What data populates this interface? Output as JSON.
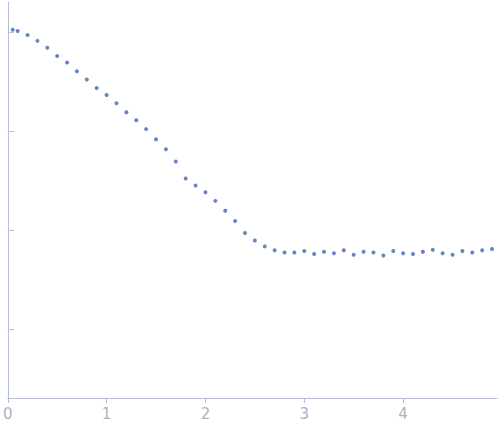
{
  "chart_data": {
    "type": "scatter",
    "x": [
      0.05,
      0.1,
      0.2,
      0.3,
      0.4,
      0.5,
      0.6,
      0.7,
      0.8,
      0.9,
      1.0,
      1.1,
      1.2,
      1.3,
      1.4,
      1.5,
      1.6,
      1.7,
      1.8,
      1.9,
      2.0,
      2.1,
      2.2,
      2.3,
      2.4,
      2.5,
      2.6,
      2.7,
      2.8,
      2.9,
      3.0,
      3.1,
      3.2,
      3.3,
      3.4,
      3.5,
      3.6,
      3.7,
      3.8,
      3.9,
      4.0,
      4.1,
      4.2,
      4.3,
      4.4,
      4.5,
      4.6,
      4.7,
      4.8,
      4.9
    ],
    "values": [
      1.05,
      1.02,
      0.93,
      0.81,
      0.69,
      0.57,
      0.49,
      0.4,
      0.33,
      0.27,
      0.23,
      0.19,
      0.154,
      0.128,
      0.104,
      0.082,
      0.065,
      0.049,
      0.033,
      0.028,
      0.024,
      0.0196,
      0.0156,
      0.0123,
      0.0093,
      0.0078,
      0.0068,
      0.0062,
      0.0059,
      0.0059,
      0.0061,
      0.0057,
      0.006,
      0.0058,
      0.0062,
      0.0056,
      0.006,
      0.0059,
      0.0055,
      0.0061,
      0.0058,
      0.0057,
      0.006,
      0.0063,
      0.0058,
      0.0056,
      0.0061,
      0.0059,
      0.0062,
      0.0064
    ],
    "color": "#3a66b8",
    "marker": "circle",
    "xlim": [
      0,
      4.95
    ],
    "xticks": [
      0,
      1,
      2,
      3,
      4
    ],
    "ylim": [
      0.0002,
      2
    ],
    "yticks": [
      0.001,
      0.01,
      0.1,
      1
    ],
    "log": "y",
    "grid": false,
    "tick_labels": "x"
  }
}
